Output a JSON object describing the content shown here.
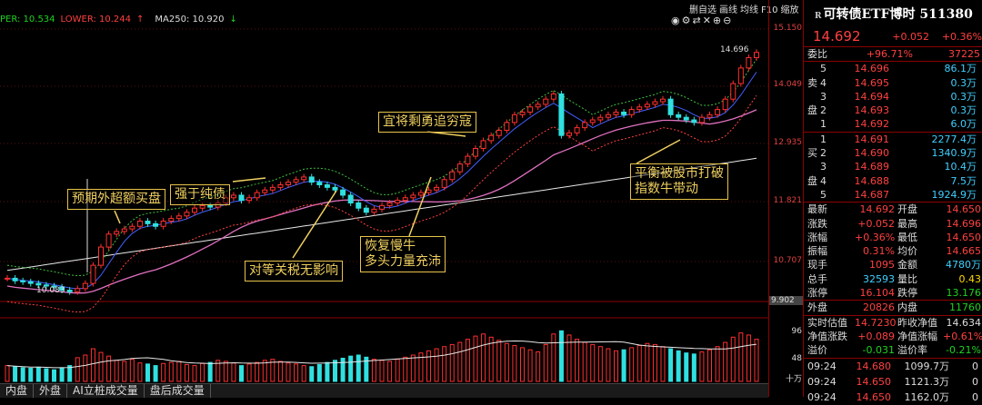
{
  "indicator": {
    "upper_label": "PER: 10.534",
    "lower_label": "LOWER: 10.244",
    "lower_arrow": "↑",
    "ma_label": "MA250: 10.920",
    "ma_arrow": "↓"
  },
  "toolbar": {
    "items": [
      "删自选",
      "画线",
      "均线",
      "F10",
      "缩放"
    ]
  },
  "icons": [
    "eye-icon",
    "settings-icon",
    "swap-icon",
    "close-icon",
    "zoom-in-icon",
    "zoom-out-icon"
  ],
  "annotations": [
    {
      "text": "预期外超额买盘"
    },
    {
      "text": "强于纯债"
    },
    {
      "text": "宜将剩勇追穷寇"
    },
    {
      "text": "对等关税无影响"
    },
    {
      "text": "恢复慢牛\n多头力量充沛"
    },
    {
      "text": "平衡被股市打破\n指数牛带动"
    }
  ],
  "chart_labels": {
    "high": "14.696",
    "low": "10.083"
  },
  "price_axis": [
    "15.150",
    "14.049",
    "12.935",
    "11.821",
    "10.707",
    "9.902"
  ],
  "volume_axis": [
    "96",
    "48"
  ],
  "volume_unit": "十万",
  "tabs": [
    "内盘",
    "外盘",
    "AI立桩成交量",
    "盘后成交量"
  ],
  "quote": {
    "title_prefix": "R",
    "title": "可转债ETF博时 511380",
    "price": "14.692",
    "change": "+0.052",
    "change_pct": "+0.36%",
    "weibi_label": "委比",
    "weibi_pct": "+96.71%",
    "weibi_value": "37225",
    "sell_side_label": [
      "卖",
      "盘"
    ],
    "buy_side_label": [
      "买",
      "盘"
    ],
    "sell": [
      {
        "level": "5",
        "price": "14.696",
        "vol": "86.1万"
      },
      {
        "level": "4",
        "price": "14.695",
        "vol": "0.3万"
      },
      {
        "level": "3",
        "price": "14.694",
        "vol": "0.3万"
      },
      {
        "level": "2",
        "price": "14.693",
        "vol": "0.3万"
      },
      {
        "level": "1",
        "price": "14.692",
        "vol": "6.0万"
      }
    ],
    "buy": [
      {
        "level": "1",
        "price": "14.691",
        "vol": "2277.4万"
      },
      {
        "level": "2",
        "price": "14.690",
        "vol": "1340.9万"
      },
      {
        "level": "3",
        "price": "14.689",
        "vol": "10.4万"
      },
      {
        "level": "4",
        "price": "14.688",
        "vol": "7.5万"
      },
      {
        "level": "5",
        "price": "14.687",
        "vol": "1924.9万"
      }
    ],
    "stats": [
      {
        "l1": "最新",
        "v1": "14.692",
        "c1": "red",
        "l2": "开盘",
        "v2": "14.650",
        "c2": "red"
      },
      {
        "l1": "涨跌",
        "v1": "+0.052",
        "c1": "red",
        "l2": "最高",
        "v2": "14.696",
        "c2": "red"
      },
      {
        "l1": "涨幅",
        "v1": "+0.36%",
        "c1": "red",
        "l2": "最低",
        "v2": "14.650",
        "c2": "red"
      },
      {
        "l1": "振幅",
        "v1": "0.31%",
        "c1": "red",
        "l2": "均价",
        "v2": "14.665",
        "c2": "red"
      },
      {
        "l1": "现手",
        "v1": "1095",
        "c1": "red",
        "l2": "金额",
        "v2": "4780万",
        "c2": "cyn"
      },
      {
        "l1": "总手",
        "v1": "32593",
        "c1": "cyn",
        "l2": "量比",
        "v2": "0.43",
        "c2": "yel"
      },
      {
        "l1": "涨停",
        "v1": "16.104",
        "c1": "red",
        "l2": "跌停",
        "v2": "13.176",
        "c2": "grn"
      },
      {
        "l1": "外盘",
        "v1": "20826",
        "c1": "red",
        "l2": "内盘",
        "v2": "11760",
        "c2": "grn"
      },
      {
        "l1": "实时估值",
        "v1": "14.7230",
        "c1": "red",
        "l2": "昨收净值",
        "v2": "14.634",
        "c2": "wht"
      },
      {
        "l1": "净值涨跌",
        "v1": "+0.089",
        "c1": "red",
        "l2": "净值涨幅",
        "v2": "+0.61%",
        "c2": "red"
      },
      {
        "l1": "溢价",
        "v1": "-0.031",
        "c1": "grn",
        "l2": "溢价率",
        "v2": "-0.21%",
        "c2": "grn"
      }
    ],
    "ticks": [
      {
        "time": "09:24",
        "price": "14.680",
        "vol": "1099.7万",
        "n": "0"
      },
      {
        "time": "09:24",
        "price": "14.650",
        "vol": "1121.3万",
        "n": "0"
      },
      {
        "time": "09:24",
        "price": "14.650",
        "vol": "1162.0万",
        "n": "0"
      }
    ]
  },
  "chart_data": {
    "type": "candlestick",
    "ylim": [
      9.902,
      15.15
    ],
    "price_series": [
      10.35,
      10.3,
      10.28,
      10.25,
      10.22,
      10.2,
      10.18,
      10.12,
      10.09,
      10.15,
      10.25,
      10.6,
      10.95,
      11.2,
      11.25,
      11.3,
      11.35,
      11.45,
      11.4,
      11.35,
      11.45,
      11.5,
      11.55,
      11.62,
      11.7,
      11.75,
      11.72,
      11.8,
      11.9,
      11.95,
      11.85,
      11.9,
      12.0,
      12.05,
      12.1,
      12.15,
      12.2,
      12.25,
      12.3,
      12.2,
      12.15,
      12.1,
      12.05,
      11.95,
      11.8,
      11.7,
      11.62,
      11.68,
      11.75,
      11.8,
      11.85,
      11.9,
      11.95,
      12.0,
      12.05,
      12.1,
      12.25,
      12.4,
      12.55,
      12.7,
      12.85,
      13.0,
      13.1,
      13.2,
      13.35,
      13.5,
      13.55,
      13.65,
      13.7,
      13.8,
      13.9,
      13.1,
      13.15,
      13.25,
      13.35,
      13.4,
      13.45,
      13.5,
      13.55,
      13.5,
      13.6,
      13.65,
      13.7,
      13.75,
      13.8,
      13.5,
      13.45,
      13.4,
      13.35,
      13.45,
      13.5,
      13.6,
      13.8,
      14.1,
      14.4,
      14.6,
      14.7
    ],
    "volume_series": [
      30,
      28,
      26,
      25,
      27,
      24,
      22,
      26,
      30,
      45,
      50,
      62,
      55,
      48,
      40,
      38,
      42,
      35,
      33,
      30,
      34,
      36,
      38,
      32,
      30,
      34,
      36,
      40,
      38,
      35,
      30,
      33,
      36,
      40,
      42,
      38,
      35,
      33,
      30,
      28,
      32,
      36,
      40,
      44,
      48,
      50,
      46,
      42,
      40,
      38,
      42,
      46,
      50,
      54,
      58,
      62,
      66,
      70,
      74,
      80,
      86,
      90,
      84,
      78,
      72,
      68,
      64,
      60,
      56,
      70,
      90,
      96,
      88,
      80,
      74,
      70,
      66,
      62,
      58,
      60,
      64,
      68,
      72,
      70,
      66,
      62,
      58,
      54,
      52,
      56,
      60,
      66,
      74,
      84,
      92,
      88,
      80
    ]
  }
}
